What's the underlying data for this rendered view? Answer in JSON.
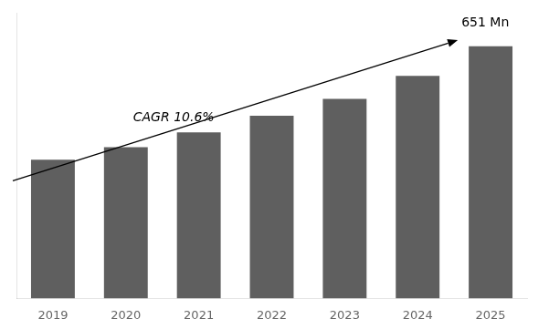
{
  "chart_data": {
    "type": "bar",
    "categories": [
      "2019",
      "2020",
      "2021",
      "2022",
      "2023",
      "2024",
      "2025"
    ],
    "values": [
      330,
      360,
      395,
      435,
      475,
      530,
      600
    ],
    "color": "#5f5f5f",
    "ylim": [
      0,
      680
    ],
    "grid": false,
    "tick_labels": "x",
    "annotations": [
      "CAGR 10.6%",
      "651 Mn"
    ]
  }
}
